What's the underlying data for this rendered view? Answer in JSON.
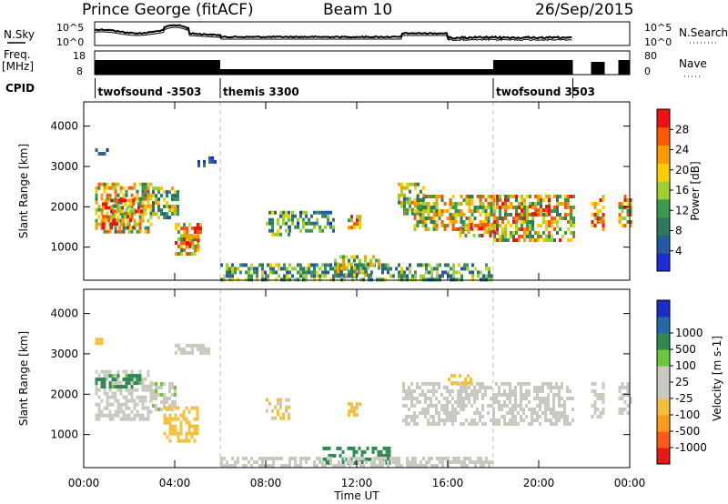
{
  "header": {
    "station": "Prince George (fitACF)",
    "beam": "Beam 10",
    "date": "26/Sep/2015"
  },
  "top_panels": {
    "nsky_label": "N.Sky",
    "nsearch_label": "N.Search",
    "freq_label_line1": "Freq.",
    "freq_label_line2": "[MHz]",
    "nave_label": "Nave",
    "cpid_label": "CPID",
    "noise_left_ticks": [
      "10^5",
      "10^0"
    ],
    "noise_right_ticks": [
      "10^5",
      "10^0"
    ],
    "freq_left_ticks": [
      "18",
      "8"
    ],
    "freq_right_ticks": [
      "80",
      "0"
    ],
    "cpid_segments": [
      {
        "label": "twofsound -3503",
        "start_hour": 0.5,
        "end_hour": 6.0
      },
      {
        "label": "themis 3300",
        "start_hour": 6.0,
        "end_hour": 18.0
      },
      {
        "label": "twofsound 3503",
        "start_hour": 18.0,
        "end_hour": 21.5
      }
    ],
    "data_gaps_hours": [
      [
        0.0,
        0.5
      ],
      [
        21.5,
        22.3
      ],
      [
        23.0,
        23.5
      ]
    ]
  },
  "colors": {
    "power_scale": [
      "#1c2cd8",
      "#245aa4",
      "#2e7a60",
      "#3a9a4c",
      "#9ad030",
      "#ffcc00",
      "#ff9900",
      "#ff5a00",
      "#ee1111"
    ],
    "velocity_scale": [
      "#e81818",
      "#ff5a1a",
      "#ff9a1c",
      "#f4c040",
      "#c9c9c0",
      "#c9c9c0",
      "#6ac83a",
      "#2e8a52",
      "#2468a8",
      "#1c2cc8"
    ],
    "velocity_gray": "#c9c9c0"
  },
  "chart_data": [
    {
      "type": "heatmap",
      "name": "power-panel",
      "xlabel": "",
      "ylabel": "Slant Range [km]",
      "xlim": [
        0,
        24
      ],
      "ylim": [
        180,
        4600
      ],
      "yticks": [
        1000,
        2000,
        3000,
        4000
      ],
      "colorbar": {
        "label": "Power [dB]",
        "ticks": [
          4,
          8,
          12,
          16,
          20,
          24,
          28
        ],
        "range": [
          0,
          32
        ]
      },
      "regions": [
        {
          "t0": 0.5,
          "t1": 3.0,
          "r0": 1400,
          "r1": 2600,
          "value": 18
        },
        {
          "t0": 0.8,
          "t1": 2.2,
          "r0": 1500,
          "r1": 1800,
          "value": 26
        },
        {
          "t0": 0.8,
          "t1": 2.6,
          "r0": 1900,
          "r1": 2200,
          "value": 24
        },
        {
          "t0": 0.5,
          "t1": 1.0,
          "r0": 3300,
          "r1": 3450,
          "value": 8
        },
        {
          "t0": 3.0,
          "t1": 4.2,
          "r0": 1700,
          "r1": 2500,
          "value": 14
        },
        {
          "t0": 4.0,
          "t1": 5.2,
          "r0": 800,
          "r1": 1600,
          "value": 22
        },
        {
          "t0": 4.5,
          "t1": 5.0,
          "r0": 1000,
          "r1": 1300,
          "value": 28
        },
        {
          "t0": 5.0,
          "t1": 5.8,
          "r0": 3000,
          "r1": 3250,
          "value": 6
        },
        {
          "t0": 8.0,
          "t1": 9.0,
          "r0": 1300,
          "r1": 1900,
          "value": 12
        },
        {
          "t0": 9.0,
          "t1": 11.0,
          "r0": 1400,
          "r1": 1900,
          "value": 10
        },
        {
          "t0": 11.6,
          "t1": 12.2,
          "r0": 1500,
          "r1": 1800,
          "value": 20
        },
        {
          "t0": 13.8,
          "t1": 15.0,
          "r0": 1800,
          "r1": 2600,
          "value": 16
        },
        {
          "t0": 14.5,
          "t1": 18.0,
          "r0": 1400,
          "r1": 2300,
          "value": 18
        },
        {
          "t0": 16.5,
          "t1": 18.0,
          "r0": 1300,
          "r1": 1600,
          "value": 22
        },
        {
          "t0": 18.0,
          "t1": 21.5,
          "r0": 1200,
          "r1": 2300,
          "value": 19
        },
        {
          "t0": 19.2,
          "t1": 20.5,
          "r0": 1850,
          "r1": 2050,
          "value": 28
        },
        {
          "t0": 22.3,
          "t1": 22.9,
          "r0": 1400,
          "r1": 2300,
          "value": 22
        },
        {
          "t0": 23.5,
          "t1": 24.0,
          "r0": 1500,
          "r1": 2300,
          "value": 22
        },
        {
          "t0": 6.0,
          "t1": 18.0,
          "r0": 200,
          "r1": 600,
          "value": 12
        },
        {
          "t0": 11.0,
          "t1": 13.0,
          "r0": 300,
          "r1": 800,
          "value": 16
        }
      ]
    },
    {
      "type": "heatmap",
      "name": "velocity-panel",
      "xlabel": "Time UT",
      "ylabel": "Slant Range [km]",
      "xlim": [
        0,
        24
      ],
      "ylim": [
        180,
        4600
      ],
      "yticks": [
        1000,
        2000,
        3000,
        4000
      ],
      "xticks": [
        "00:00",
        "04:00",
        "08:00",
        "12:00",
        "16:00",
        "20:00",
        "00:00"
      ],
      "colorbar": {
        "label": "Velocity [m s-1]",
        "ticks": [
          "-1000",
          "-500",
          "-100",
          "-25",
          "25",
          "100",
          "500",
          "1000"
        ]
      },
      "regions": [
        {
          "t0": 0.5,
          "t1": 3.0,
          "r0": 1400,
          "r1": 2600,
          "value": 0
        },
        {
          "t0": 0.5,
          "t1": 2.5,
          "r0": 2200,
          "r1": 2500,
          "value": 150
        },
        {
          "t0": 3.0,
          "t1": 4.0,
          "r0": 1600,
          "r1": 2300,
          "value": 20
        },
        {
          "t0": 3.5,
          "t1": 5.0,
          "r0": 800,
          "r1": 1700,
          "value": -300
        },
        {
          "t0": 0.5,
          "t1": 0.8,
          "r0": 3300,
          "r1": 3400,
          "value": -200
        },
        {
          "t0": 4.0,
          "t1": 5.5,
          "r0": 3000,
          "r1": 3250,
          "value": 0
        },
        {
          "t0": 8.0,
          "t1": 9.0,
          "r0": 1400,
          "r1": 1900,
          "value": -100
        },
        {
          "t0": 11.6,
          "t1": 12.2,
          "r0": 1500,
          "r1": 1800,
          "value": -300
        },
        {
          "t0": 14.0,
          "t1": 21.5,
          "r0": 1300,
          "r1": 2300,
          "value": 0
        },
        {
          "t0": 16.0,
          "t1": 17.0,
          "r0": 2300,
          "r1": 2500,
          "value": -200
        },
        {
          "t0": 22.3,
          "t1": 22.9,
          "r0": 1400,
          "r1": 2300,
          "value": 0
        },
        {
          "t0": 23.5,
          "t1": 24.0,
          "r0": 1500,
          "r1": 2300,
          "value": 0
        },
        {
          "t0": 10.5,
          "t1": 13.5,
          "r0": 250,
          "r1": 700,
          "value": 200
        },
        {
          "t0": 6.0,
          "t1": 18.0,
          "r0": 200,
          "r1": 450,
          "value": -50
        }
      ]
    }
  ]
}
